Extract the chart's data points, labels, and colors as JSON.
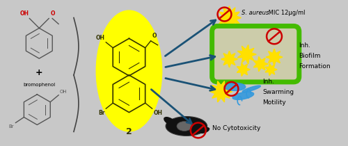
{
  "background_color": "#c8c8c8",
  "fig_width": 5.0,
  "fig_height": 2.1,
  "dpi": 100,
  "bond_color": "#555555",
  "dark_bond_color": "#333300",
  "red_color": "#cc0000",
  "arrow_color": "#1a5276",
  "no_sign_color": "#cc0000",
  "bacteria_color": "#FFE000",
  "biofilm_outer_color": "#44bb00",
  "biofilm_inner_color": "#ccccaa",
  "swarming_color": "#3399DD",
  "cell_color": "#111111",
  "nucleus_color": "#888888",
  "yellow_ellipse_color": "#FFFF00",
  "text_sa_italic": "S. aureus",
  "text_mic": " MIC 12μg/ml",
  "text_biofilm1": "Inh.",
  "text_biofilm2": "Biofilm",
  "text_biofilm3": "Formation",
  "text_swarming1": "Inh.",
  "text_swarming2": "Swarming",
  "text_swarming3": "Motility",
  "text_cyto": "No Cytotoxicity",
  "text_bromophenol": "bromophenol",
  "label2": "2",
  "text_oh": "OH",
  "text_o": "O",
  "text_br": "Br"
}
